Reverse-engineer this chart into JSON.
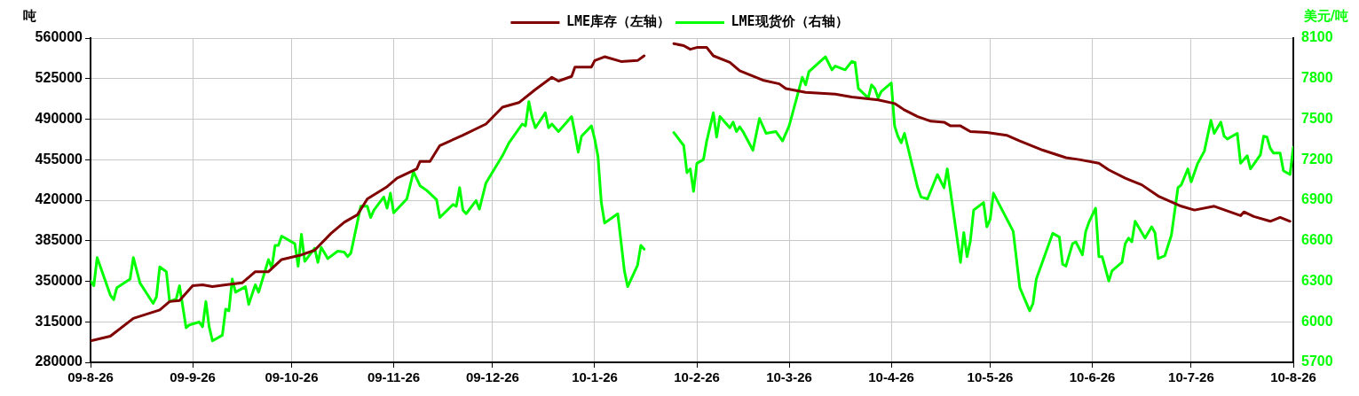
{
  "chart_data": {
    "type": "line",
    "ylabel": "吨",
    "y2label": "美元/吨",
    "legend": "top",
    "grid": true,
    "marker": "none",
    "line_style": "solid",
    "xlim": [
      "2009-08-26",
      "2010-08-26"
    ],
    "xticks": [
      {
        "value": "2009-08-26",
        "label": "09-8-26"
      },
      {
        "value": "2009-09-26",
        "label": "09-9-26"
      },
      {
        "value": "2009-10-26",
        "label": "09-10-26"
      },
      {
        "value": "2009-11-26",
        "label": "09-11-26"
      },
      {
        "value": "2009-12-26",
        "label": "09-12-26"
      },
      {
        "value": "2010-01-26",
        "label": "10-1-26"
      },
      {
        "value": "2010-02-26",
        "label": "10-2-26"
      },
      {
        "value": "2010-03-26",
        "label": "10-3-26"
      },
      {
        "value": "2010-04-26",
        "label": "10-4-26"
      },
      {
        "value": "2010-05-26",
        "label": "10-5-26"
      },
      {
        "value": "2010-06-26",
        "label": "10-6-26"
      },
      {
        "value": "2010-07-26",
        "label": "10-7-26"
      },
      {
        "value": "2010-08-26",
        "label": "10-8-26"
      }
    ],
    "ylim": [
      280000,
      560000
    ],
    "yticks": [
      280000,
      315000,
      350000,
      385000,
      420000,
      455000,
      490000,
      525000,
      560000
    ],
    "y2lim": [
      5700,
      8100
    ],
    "y2ticks": [
      5700,
      6000,
      6300,
      6600,
      6900,
      7200,
      7500,
      7800,
      8100
    ],
    "series": [
      {
        "name": "LME库存（左轴）",
        "color": "#800000",
        "axis": "y",
        "x": [
          "2009-08-26",
          "2009-09-01",
          "2009-09-08",
          "2009-09-16",
          "2009-09-19",
          "2009-09-22",
          "2009-09-26",
          "2009-09-29",
          "2009-10-02",
          "2009-10-06",
          "2009-10-11",
          "2009-10-15",
          "2009-10-19",
          "2009-10-23",
          "2009-10-29",
          "2009-11-02",
          "2009-11-07",
          "2009-11-11",
          "2009-11-15",
          "2009-11-18",
          "2009-11-24",
          "2009-11-27",
          "2009-12-03",
          "2009-12-04",
          "2009-12-07",
          "2009-12-10",
          "2009-12-17",
          "2009-12-24",
          "2009-12-29",
          "2010-01-03",
          "2010-01-08",
          "2010-01-13",
          "2010-01-15",
          "2010-01-19",
          "2010-01-20",
          "2010-01-25",
          "2010-01-26",
          "2010-01-29",
          "2010-02-03",
          "2010-02-08",
          "2010-02-10",
          "2010-02-15",
          "2010-02-19",
          "2010-02-22",
          "2010-02-24",
          "2010-02-26",
          "2010-03-01",
          "2010-03-03",
          "2010-03-08",
          "2010-03-11",
          "2010-03-18",
          "2010-03-23",
          "2010-03-25",
          "2010-03-31",
          "2010-04-09",
          "2010-04-14",
          "2010-04-22",
          "2010-04-27",
          "2010-04-30",
          "2010-05-04",
          "2010-05-08",
          "2010-05-12",
          "2010-05-14",
          "2010-05-17",
          "2010-05-20",
          "2010-05-25",
          "2010-05-31",
          "2010-06-04",
          "2010-06-11",
          "2010-06-18",
          "2010-06-22",
          "2010-06-28",
          "2010-07-01",
          "2010-07-06",
          "2010-07-11",
          "2010-07-16",
          "2010-07-23",
          "2010-07-27",
          "2010-08-02",
          "2010-08-10",
          "2010-08-11",
          "2010-08-14",
          "2010-08-19",
          "2010-08-22",
          "2010-08-25"
        ],
        "values": [
          298500,
          302600,
          318000,
          325200,
          332500,
          333300,
          346200,
          347000,
          345400,
          347000,
          348600,
          358300,
          358300,
          368800,
          372800,
          376800,
          391400,
          401000,
          407500,
          421200,
          431700,
          439000,
          447000,
          453500,
          453500,
          467200,
          476100,
          485800,
          500300,
          504300,
          515600,
          526100,
          522900,
          526900,
          535000,
          535000,
          540600,
          543900,
          539800,
          540600,
          544700,
          null,
          555200,
          553500,
          550300,
          551900,
          551900,
          544700,
          539000,
          531800,
          523700,
          520500,
          516400,
          513200,
          511600,
          509200,
          506700,
          503500,
          497900,
          492200,
          488200,
          487400,
          484200,
          484200,
          479300,
          478500,
          476100,
          471200,
          463200,
          456700,
          455100,
          451900,
          446200,
          439000,
          433300,
          423600,
          414800,
          411500,
          414800,
          406700,
          409900,
          405900,
          401800,
          405100,
          401800
        ]
      },
      {
        "name": "LME现货价（右轴）",
        "color": "#00ff00",
        "axis": "y2",
        "x": [
          "2009-08-26",
          "2009-08-27",
          "2009-08-28",
          "2009-09-01",
          "2009-09-02",
          "2009-09-03",
          "2009-09-07",
          "2009-09-08",
          "2009-09-10",
          "2009-09-14",
          "2009-09-15",
          "2009-09-16",
          "2009-09-18",
          "2009-09-19",
          "2009-09-21",
          "2009-09-22",
          "2009-09-24",
          "2009-09-25",
          "2009-09-28",
          "2009-09-29",
          "2009-09-30",
          "2009-10-01",
          "2009-10-02",
          "2009-10-05",
          "2009-10-06",
          "2009-10-07",
          "2009-10-08",
          "2009-10-09",
          "2009-10-12",
          "2009-10-13",
          "2009-10-15",
          "2009-10-16",
          "2009-10-19",
          "2009-10-20",
          "2009-10-21",
          "2009-10-22",
          "2009-10-23",
          "2009-10-27",
          "2009-10-28",
          "2009-10-29",
          "2009-10-30",
          "2009-11-02",
          "2009-11-03",
          "2009-11-04",
          "2009-11-06",
          "2009-11-09",
          "2009-11-11",
          "2009-11-12",
          "2009-11-13",
          "2009-11-16",
          "2009-11-18",
          "2009-11-19",
          "2009-11-20",
          "2009-11-23",
          "2009-11-24",
          "2009-11-25",
          "2009-11-26",
          "2009-11-30",
          "2009-12-02",
          "2009-12-04",
          "2009-12-06",
          "2009-12-09",
          "2009-12-10",
          "2009-12-14",
          "2009-12-15",
          "2009-12-16",
          "2009-12-17",
          "2009-12-18",
          "2009-12-21",
          "2009-12-22",
          "2009-12-24",
          "2009-12-29",
          "2009-12-31",
          "2010-01-04",
          "2010-01-05",
          "2010-01-06",
          "2010-01-07",
          "2010-01-08",
          "2010-01-11",
          "2010-01-12",
          "2010-01-13",
          "2010-01-15",
          "2010-01-19",
          "2010-01-20",
          "2010-01-21",
          "2010-01-22",
          "2010-01-25",
          "2010-01-26",
          "2010-01-27",
          "2010-01-28",
          "2010-01-29",
          "2010-02-02",
          "2010-02-04",
          "2010-02-05",
          "2010-02-08",
          "2010-02-09",
          "2010-02-10",
          "2010-02-15",
          "2010-02-19",
          "2010-02-22",
          "2010-02-23",
          "2010-02-24",
          "2010-02-25",
          "2010-02-26",
          "2010-02-28",
          "2010-03-01",
          "2010-03-03",
          "2010-03-04",
          "2010-03-05",
          "2010-03-08",
          "2010-03-09",
          "2010-03-10",
          "2010-03-11",
          "2010-03-12",
          "2010-03-15",
          "2010-03-17",
          "2010-03-19",
          "2010-03-22",
          "2010-03-24",
          "2010-03-26",
          "2010-03-30",
          "2010-03-31",
          "2010-04-01",
          "2010-04-06",
          "2010-04-08",
          "2010-04-09",
          "2010-04-12",
          "2010-04-14",
          "2010-04-15",
          "2010-04-16",
          "2010-04-19",
          "2010-04-20",
          "2010-04-21",
          "2010-04-22",
          "2010-04-23",
          "2010-04-26",
          "2010-04-27",
          "2010-04-28",
          "2010-04-29",
          "2010-04-30",
          "2010-05-04",
          "2010-05-05",
          "2010-05-07",
          "2010-05-10",
          "2010-05-12",
          "2010-05-13",
          "2010-05-17",
          "2010-05-18",
          "2010-05-19",
          "2010-05-20",
          "2010-05-21",
          "2010-05-24",
          "2010-05-25",
          "2010-05-26",
          "2010-05-27",
          "2010-06-02",
          "2010-06-04",
          "2010-06-07",
          "2010-06-08",
          "2010-06-09",
          "2010-06-14",
          "2010-06-16",
          "2010-06-17",
          "2010-06-18",
          "2010-06-20",
          "2010-06-21",
          "2010-06-23",
          "2010-06-24",
          "2010-06-25",
          "2010-06-27",
          "2010-06-28",
          "2010-06-29",
          "2010-07-01",
          "2010-07-02",
          "2010-07-05",
          "2010-07-06",
          "2010-07-07",
          "2010-07-08",
          "2010-07-09",
          "2010-07-12",
          "2010-07-14",
          "2010-07-15",
          "2010-07-16",
          "2010-07-18",
          "2010-07-20",
          "2010-07-22",
          "2010-07-23",
          "2010-07-25",
          "2010-07-26",
          "2010-07-28",
          "2010-07-30",
          "2010-08-01",
          "2010-08-02",
          "2010-08-04",
          "2010-08-05",
          "2010-08-06",
          "2010-08-09",
          "2010-08-10",
          "2010-08-12",
          "2010-08-13",
          "2010-08-16",
          "2010-08-17",
          "2010-08-18",
          "2010-08-19",
          "2010-08-20",
          "2010-08-22",
          "2010-08-23",
          "2010-08-25",
          "2010-08-26"
        ],
        "values": [
          6302,
          6267,
          6475,
          6198,
          6164,
          6253,
          6316,
          6475,
          6288,
          6136,
          6184,
          6406,
          6371,
          6150,
          6170,
          6267,
          5956,
          5977,
          5998,
          5963,
          6150,
          5963,
          5859,
          5901,
          6094,
          6081,
          6316,
          6219,
          6260,
          6129,
          6274,
          6219,
          6461,
          6399,
          6565,
          6565,
          6634,
          6578,
          6412,
          6648,
          6447,
          6544,
          6440,
          6551,
          6468,
          6523,
          6516,
          6482,
          6509,
          6855,
          6855,
          6772,
          6827,
          6924,
          6841,
          6952,
          6807,
          6910,
          7111,
          7007,
          6973,
          6904,
          6772,
          6869,
          6855,
          6993,
          6827,
          6800,
          6897,
          6834,
          7028,
          7229,
          7325,
          7464,
          7450,
          7630,
          7512,
          7436,
          7547,
          7436,
          7464,
          7408,
          7519,
          7395,
          7256,
          7374,
          7450,
          7353,
          7222,
          6883,
          6731,
          6800,
          6378,
          6260,
          6419,
          6565,
          6537,
          null,
          7401,
          7305,
          7104,
          7132,
          6966,
          7173,
          7201,
          7339,
          7547,
          7367,
          7519,
          7436,
          7478,
          7408,
          7443,
          7408,
          7270,
          7505,
          7395,
          7408,
          7339,
          7450,
          7810,
          7754,
          7851,
          7962,
          7865,
          7893,
          7865,
          7927,
          7920,
          7727,
          7657,
          7754,
          7727,
          7657,
          7706,
          7768,
          7450,
          7374,
          7325,
          7395,
          6993,
          6924,
          6910,
          7090,
          6993,
          7132,
          6440,
          6661,
          6482,
          6599,
          6827,
          6883,
          6703,
          6758,
          6952,
          6670,
          6253,
          6081,
          6136,
          6316,
          6655,
          6627,
          6426,
          6412,
          6578,
          6592,
          6496,
          6668,
          6738,
          6841,
          6482,
          6482,
          6302,
          6378,
          6440,
          6578,
          6620,
          6592,
          6744,
          6620,
          6703,
          6661,
          6468,
          6489,
          6641,
          6993,
          7014,
          7132,
          7035,
          7173,
          7263,
          7491,
          7395,
          7478,
          7374,
          7353,
          7395,
          7173,
          7229,
          7132,
          7235,
          7374,
          7367,
          7284,
          7249,
          7249,
          7118,
          7090,
          7291
        ]
      }
    ]
  }
}
